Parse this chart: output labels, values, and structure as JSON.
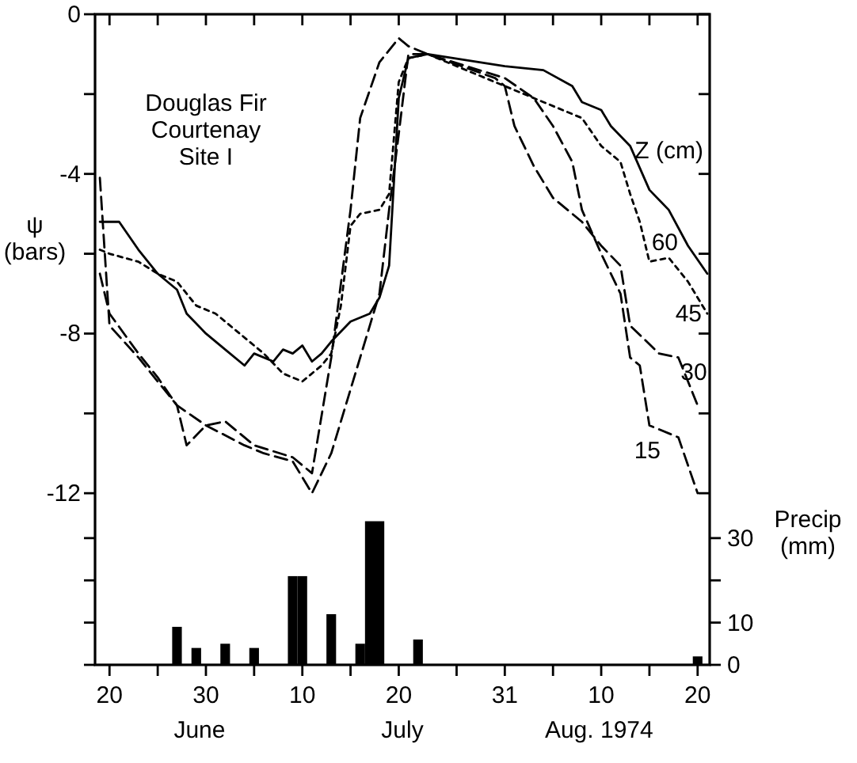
{
  "chart_data": {
    "type": "line",
    "ylabel": "ψ\n(bars)",
    "y2label": "Precip\n(mm)",
    "legend_title": "Z (cm)",
    "annotations": [
      "Douglas Fir\nCourtenay\nSite I",
      "June",
      "July",
      "Aug. 1974"
    ],
    "xlim": [
      "1974-06-18T12:00",
      "1974-08-21T06:00"
    ],
    "xticks": [
      {
        "value": "1974-06-20",
        "label": "20"
      },
      {
        "value": "1974-06-25",
        "label": null
      },
      {
        "value": "1974-06-30",
        "label": "30"
      },
      {
        "value": "1974-07-05",
        "label": null
      },
      {
        "value": "1974-07-10",
        "label": "10"
      },
      {
        "value": "1974-07-15",
        "label": null
      },
      {
        "value": "1974-07-20",
        "label": "20"
      },
      {
        "value": "1974-07-26",
        "label": null
      },
      {
        "value": "1974-07-31",
        "label": "31"
      },
      {
        "value": "1974-08-05",
        "label": null
      },
      {
        "value": "1974-08-10",
        "label": "10"
      },
      {
        "value": "1974-08-15",
        "label": null
      },
      {
        "value": "1974-08-20",
        "label": "20"
      }
    ],
    "ylim": [
      -16.3,
      0
    ],
    "yticks": [
      0,
      {
        "value": -2,
        "label": null
      },
      -4,
      {
        "value": -6,
        "label": null
      },
      -8,
      {
        "value": -10,
        "label": null
      },
      -12
    ],
    "y2lim": [
      0,
      154
    ],
    "y2ticks": [
      0,
      10,
      {
        "value": 20,
        "label": null
      },
      30
    ],
    "grid": false,
    "legend": false,
    "marker": "none",
    "series": [
      {
        "name": "60",
        "color": "#000000",
        "line_style": "solid",
        "x": [
          "1974-06-19",
          "1974-06-21",
          "1974-06-23",
          "1974-06-25",
          "1974-06-27",
          "1974-06-28",
          "1974-06-30",
          "1974-07-02",
          "1974-07-04",
          "1974-07-05",
          "1974-07-07",
          "1974-07-08",
          "1974-07-09",
          "1974-07-10",
          "1974-07-11",
          "1974-07-12",
          "1974-07-13",
          "1974-07-15",
          "1974-07-17",
          "1974-07-18",
          "1974-07-19",
          "1974-07-20",
          "1974-07-21",
          "1974-07-23",
          "1974-07-31",
          "1974-08-04",
          "1974-08-07",
          "1974-08-08",
          "1974-08-10",
          "1974-08-11",
          "1974-08-13",
          "1974-08-15",
          "1974-08-17",
          "1974-08-19",
          "1974-08-21"
        ],
        "values": [
          -5.2,
          -5.2,
          -5.9,
          -6.5,
          -6.9,
          -7.5,
          -8.0,
          -8.4,
          -8.8,
          -8.5,
          -8.7,
          -8.4,
          -8.5,
          -8.3,
          -8.7,
          -8.5,
          -8.2,
          -7.7,
          -7.5,
          -7.1,
          -6.3,
          -2.1,
          -1.1,
          -1.0,
          -1.3,
          -1.4,
          -1.8,
          -2.2,
          -2.4,
          -2.8,
          -3.3,
          -4.4,
          -4.9,
          -5.8,
          -6.5
        ]
      },
      {
        "name": "45",
        "color": "#000000",
        "line_style": "dotted",
        "x": [
          "1974-06-19",
          "1974-06-20",
          "1974-06-23",
          "1974-06-25",
          "1974-06-27",
          "1974-06-29",
          "1974-07-01",
          "1974-07-03",
          "1974-07-06",
          "1974-07-08",
          "1974-07-10",
          "1974-07-12",
          "1974-07-13",
          "1974-07-14",
          "1974-07-15",
          "1974-07-16",
          "1974-07-18",
          "1974-07-19",
          "1974-07-20",
          "1974-07-21",
          "1974-07-23",
          "1974-07-30",
          "1974-08-04",
          "1974-08-08",
          "1974-08-10",
          "1974-08-12",
          "1974-08-13",
          "1974-08-14",
          "1974-08-15",
          "1974-08-17",
          "1974-08-19",
          "1974-08-21"
        ],
        "values": [
          -5.9,
          -6.0,
          -6.2,
          -6.5,
          -6.7,
          -7.3,
          -7.5,
          -7.9,
          -8.5,
          -9.0,
          -9.2,
          -8.8,
          -8.5,
          -7.3,
          -5.3,
          -5.0,
          -4.9,
          -4.5,
          -1.7,
          -1.1,
          -1.0,
          -1.7,
          -2.2,
          -2.6,
          -3.3,
          -3.7,
          -4.5,
          -5.2,
          -6.2,
          -6.1,
          -6.7,
          -7.5
        ]
      },
      {
        "name": "30",
        "color": "#000000",
        "line_style": "dashed",
        "x": [
          "1974-06-19",
          "1974-06-20",
          "1974-06-23",
          "1974-06-25",
          "1974-06-27",
          "1974-06-30",
          "1974-07-04",
          "1974-07-06",
          "1974-07-09",
          "1974-07-11",
          "1974-07-13",
          "1974-07-15",
          "1974-07-18",
          "1974-07-19",
          "1974-07-20",
          "1974-07-21",
          "1974-07-23",
          "1974-07-30",
          "1974-07-31",
          "1974-08-01",
          "1974-08-03",
          "1974-08-05",
          "1974-08-08",
          "1974-08-10",
          "1974-08-12",
          "1974-08-13",
          "1974-08-16",
          "1974-08-18",
          "1974-08-20"
        ],
        "values": [
          -6.5,
          -7.5,
          -8.5,
          -9.1,
          -9.8,
          -10.3,
          -10.8,
          -11.0,
          -11.2,
          -12.0,
          -11.0,
          -9.4,
          -7.0,
          -4.9,
          -3.0,
          -1.0,
          -1.0,
          -1.6,
          -1.8,
          -2.8,
          -3.8,
          -4.6,
          -5.2,
          -5.8,
          -6.3,
          -7.8,
          -8.5,
          -8.6,
          -9.8
        ]
      },
      {
        "name": "15",
        "color": "#000000",
        "line_style": "dashed",
        "x": [
          "1974-06-19",
          "1974-06-20",
          "1974-06-23",
          "1974-06-25",
          "1974-06-27",
          "1974-06-28",
          "1974-06-30",
          "1974-07-02",
          "1974-07-05",
          "1974-07-09",
          "1974-07-11",
          "1974-07-13",
          "1974-07-15",
          "1974-07-16",
          "1974-07-18",
          "1974-07-20",
          "1974-07-21",
          "1974-07-23",
          "1974-07-31",
          "1974-08-03",
          "1974-08-05",
          "1974-08-07",
          "1974-08-08",
          "1974-08-10",
          "1974-08-12",
          "1974-08-13",
          "1974-08-14",
          "1974-08-15",
          "1974-08-18",
          "1974-08-20"
        ],
        "values": [
          -4.1,
          -7.8,
          -8.6,
          -9.2,
          -9.8,
          -10.8,
          -10.3,
          -10.2,
          -10.8,
          -11.1,
          -11.5,
          -8.6,
          -4.9,
          -2.6,
          -1.2,
          -0.6,
          -0.8,
          -1.0,
          -1.6,
          -2.1,
          -2.8,
          -3.7,
          -4.9,
          -6.0,
          -7.0,
          -8.6,
          -8.8,
          -10.3,
          -10.6,
          -12.0
        ]
      },
      {
        "type": "bar",
        "axis": "y2",
        "color": "#000000",
        "x": [
          "1974-06-27",
          "1974-06-29",
          "1974-07-02",
          "1974-07-05",
          "1974-07-09",
          "1974-07-10",
          "1974-07-13",
          "1974-07-16",
          "1974-07-17",
          "1974-07-18",
          "1974-07-22",
          "1974-08-20"
        ],
        "values": [
          9,
          4,
          5,
          4,
          21,
          21,
          12,
          5,
          34,
          34,
          6,
          2
        ]
      }
    ]
  }
}
